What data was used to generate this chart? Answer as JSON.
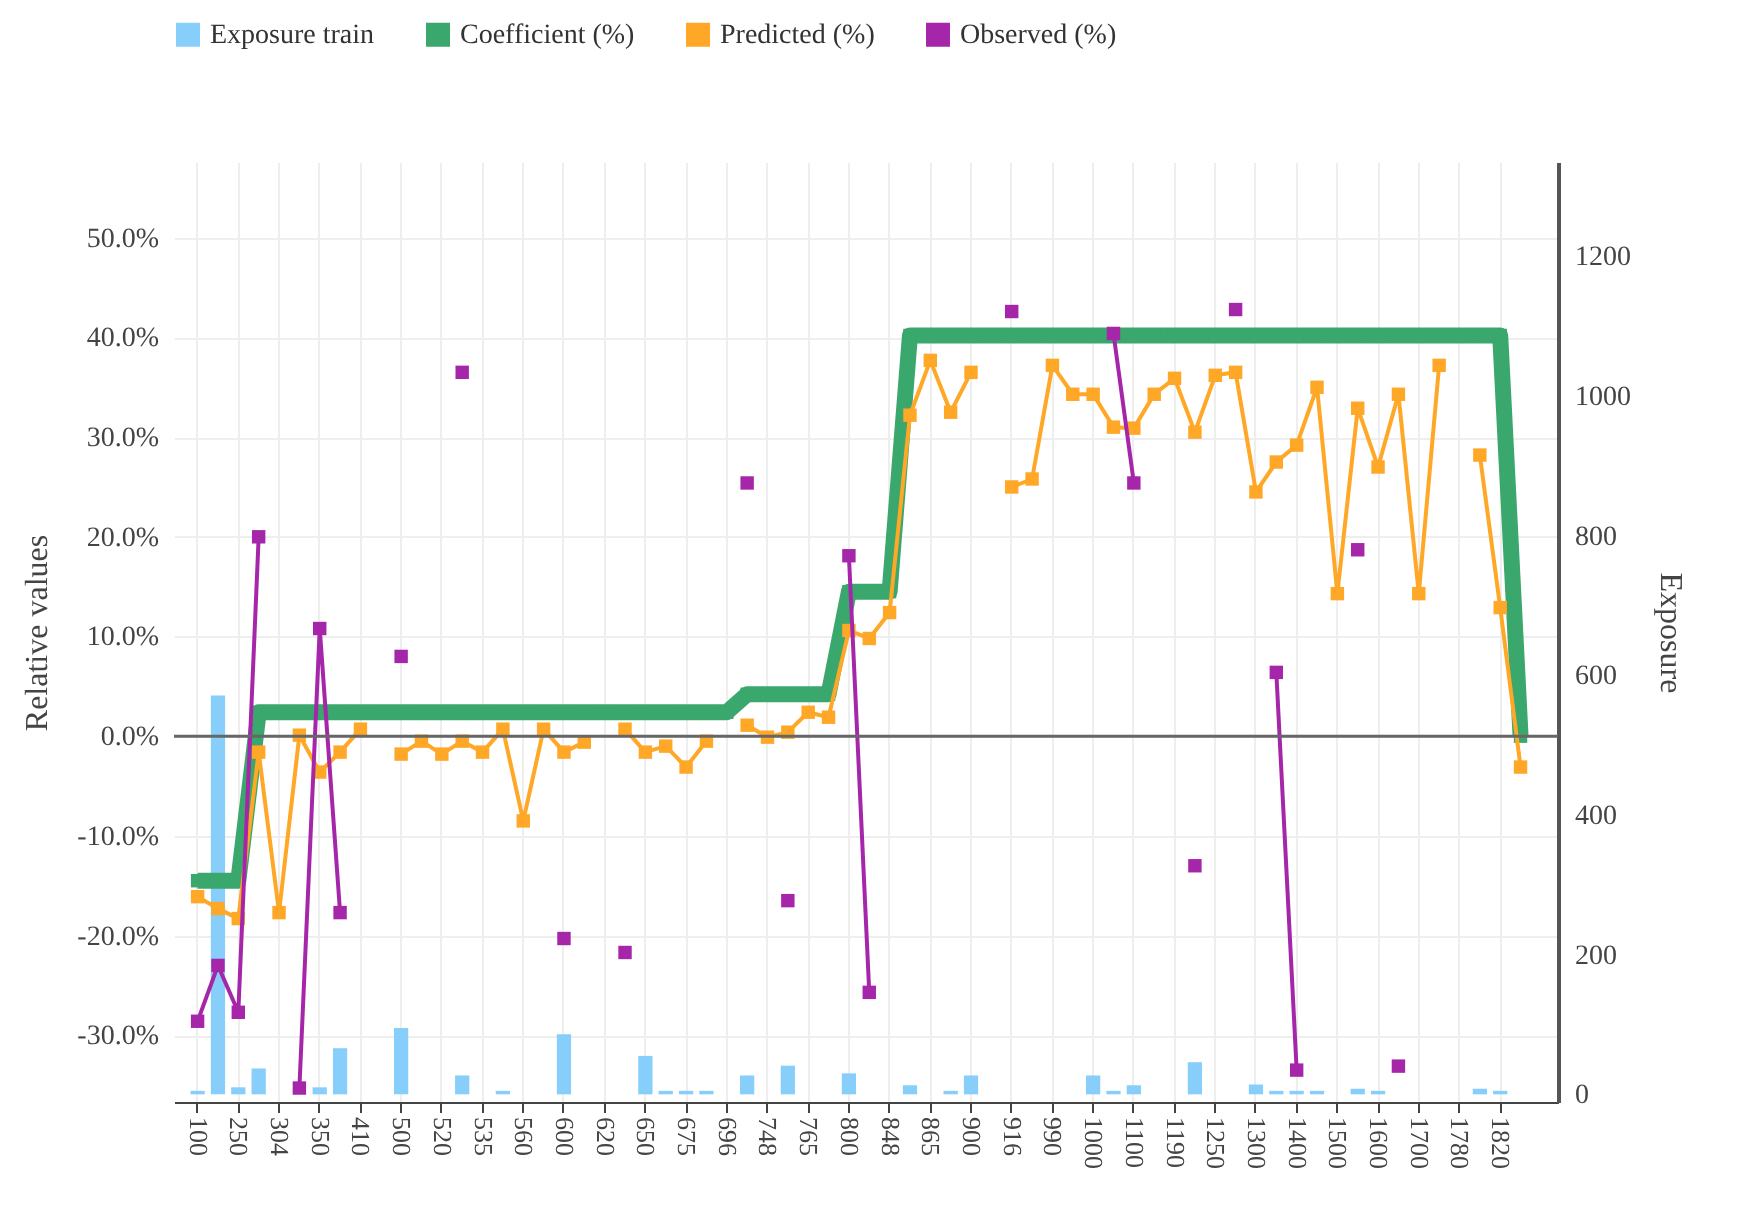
{
  "chart_data": {
    "type": "line",
    "ylabel": "Relative values",
    "y2label": "Exposure",
    "categories": [
      "100",
      null,
      "250",
      null,
      "304",
      null,
      "350",
      null,
      "410",
      null,
      "500",
      null,
      "520",
      null,
      "535",
      null,
      "560",
      null,
      "600",
      null,
      "620",
      null,
      "650",
      null,
      "675",
      null,
      "696",
      null,
      "748",
      null,
      "765",
      null,
      "800",
      null,
      "848",
      null,
      "865",
      null,
      "900",
      null,
      "916",
      null,
      "990",
      null,
      "1000",
      null,
      "1100",
      null,
      "1190",
      null,
      "1250",
      null,
      "1300",
      null,
      "1400",
      null,
      "1500",
      null,
      "1600",
      null,
      "1700",
      null,
      "1780",
      null,
      "1820",
      null
    ],
    "series": [
      {
        "name": "Exposure train",
        "type": "bar",
        "axis": "y2",
        "color": "#87cefa",
        "values": [
          5,
          571,
          10,
          37,
          null,
          null,
          10,
          66,
          null,
          null,
          95,
          null,
          null,
          27,
          null,
          5,
          null,
          null,
          86,
          null,
          null,
          null,
          55,
          5,
          5,
          5,
          null,
          27,
          null,
          41,
          null,
          null,
          30,
          null,
          null,
          13,
          null,
          5,
          27,
          null,
          null,
          null,
          null,
          null,
          27,
          5,
          13,
          null,
          null,
          46,
          null,
          null,
          14,
          5,
          5,
          5,
          null,
          8,
          5,
          null,
          null,
          null,
          null,
          8,
          5,
          null
        ]
      },
      {
        "name": "Coefficient (%)",
        "color": "#3aa76d",
        "values": [
          -14.5,
          -14.5,
          -14.5,
          2.4,
          2.4,
          2.4,
          2.4,
          2.4,
          2.4,
          2.4,
          2.4,
          2.4,
          2.4,
          2.4,
          2.4,
          2.4,
          2.4,
          2.4,
          2.4,
          2.4,
          2.4,
          2.4,
          2.4,
          2.4,
          2.4,
          2.4,
          2.4,
          4.2,
          4.2,
          4.2,
          4.2,
          4.2,
          14.5,
          14.5,
          14.5,
          40.2,
          40.2,
          40.2,
          40.2,
          40.2,
          40.2,
          40.2,
          40.2,
          40.2,
          40.2,
          40.2,
          40.2,
          40.2,
          40.2,
          40.2,
          40.2,
          40.2,
          40.2,
          40.2,
          40.2,
          40.2,
          40.2,
          40.2,
          40.2,
          40.2,
          40.2,
          40.2,
          40.2,
          40.2,
          40.2,
          0
        ]
      },
      {
        "name": "Predicted (%)",
        "color": "#ffa726",
        "values": [
          -16.1,
          -17.3,
          -18.3,
          -1.6,
          -17.7,
          0.1,
          -3.6,
          -1.6,
          0.7,
          null,
          -1.8,
          -0.5,
          -1.8,
          -0.5,
          -1.6,
          0.7,
          -8.5,
          0.7,
          -1.6,
          -0.6,
          null,
          0.7,
          -1.6,
          -1.0,
          -3.1,
          -0.5,
          null,
          1.1,
          -0.1,
          0.4,
          2.4,
          1.9,
          10.6,
          9.8,
          12.4,
          32.2,
          37.7,
          32.5,
          36.5,
          null,
          25.0,
          25.8,
          37.2,
          34.3,
          34.3,
          31.0,
          30.9,
          34.3,
          35.9,
          30.5,
          36.2,
          36.5,
          24.5,
          27.5,
          29.2,
          35.0,
          14.3,
          32.9,
          27.0,
          34.3,
          14.3,
          37.2,
          null,
          28.2,
          12.9,
          -3.1
        ]
      },
      {
        "name": "Observed (%)",
        "color": "#a626aa",
        "values": [
          -28.6,
          -23.0,
          -27.7,
          20.0,
          null,
          -35.3,
          10.8,
          -17.7,
          null,
          null,
          8.0,
          null,
          null,
          36.5,
          null,
          null,
          null,
          null,
          -20.3,
          null,
          null,
          -21.7,
          null,
          null,
          null,
          null,
          null,
          25.4,
          null,
          -16.5,
          null,
          null,
          18.1,
          -25.7,
          null,
          null,
          null,
          null,
          null,
          null,
          42.6,
          null,
          null,
          null,
          null,
          40.4,
          25.4,
          null,
          null,
          -13.0,
          null,
          42.8,
          null,
          6.4,
          -33.5,
          null,
          null,
          18.7,
          null,
          -33.1,
          null,
          null,
          null,
          null,
          null,
          null
        ]
      }
    ],
    "ylim": [
      -36.7,
      57.6
    ],
    "yticks": [
      {
        "value": -30,
        "label": "-30.0%"
      },
      {
        "value": -20,
        "label": "-20.0%"
      },
      {
        "value": -10,
        "label": "-10.0%"
      },
      {
        "value": 0,
        "label": "0.0%"
      },
      {
        "value": 10,
        "label": "10.0%"
      },
      {
        "value": 20,
        "label": "20.0%"
      },
      {
        "value": 30,
        "label": "30.0%"
      },
      {
        "value": 40,
        "label": "40.0%"
      },
      {
        "value": 50,
        "label": "50.0%"
      }
    ],
    "y2lim": [
      -11,
      1335
    ],
    "y2ticks": [
      0,
      200,
      400,
      600,
      800,
      1000,
      1200
    ],
    "ref_lines": [
      {
        "axis": "y",
        "value": 0,
        "color": "#666666"
      }
    ],
    "grid": true,
    "legend": "top",
    "marker": "square",
    "line_style": "solid"
  }
}
